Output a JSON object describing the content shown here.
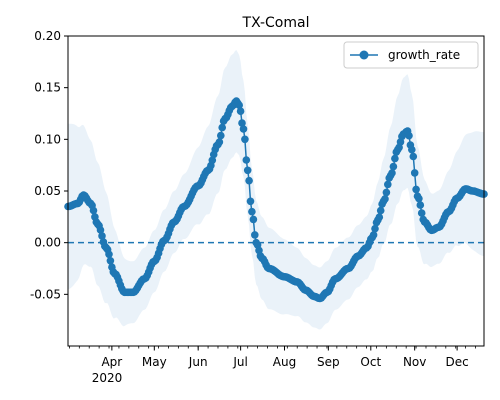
{
  "chart_data": {
    "type": "line",
    "title": "TX-Comal",
    "xlabel": "",
    "ylabel": "",
    "xlim": [
      "2020-03-01",
      "2020-12-20"
    ],
    "ylim": [
      -0.1,
      0.2
    ],
    "x_ticks": [
      {
        "date": "2020-04-01",
        "label": "Apr"
      },
      {
        "date": "2020-05-01",
        "label": "May"
      },
      {
        "date": "2020-06-01",
        "label": "Jun"
      },
      {
        "date": "2020-07-01",
        "label": "Jul"
      },
      {
        "date": "2020-08-01",
        "label": "Aug"
      },
      {
        "date": "2020-09-01",
        "label": "Sep"
      },
      {
        "date": "2020-10-01",
        "label": "Oct"
      },
      {
        "date": "2020-11-01",
        "label": "Nov"
      },
      {
        "date": "2020-12-01",
        "label": "Dec"
      }
    ],
    "year_label": "2020",
    "y_ticks": [
      "-0.05",
      "0.00",
      "0.05",
      "0.10",
      "0.15",
      "0.20"
    ],
    "y_tick_values": [
      -0.05,
      0.0,
      0.05,
      0.1,
      0.15,
      0.2
    ],
    "reference_line": {
      "y": 0.0,
      "style": "dashed",
      "color": "#1f77b4"
    },
    "legend": {
      "position": "top-right",
      "entries": [
        "growth_rate"
      ]
    },
    "colors": {
      "series": "#1f77b4",
      "band": "#dce9f5"
    },
    "series": [
      {
        "name": "growth_rate",
        "marker": "circle",
        "anchors": [
          [
            "2020-03-01",
            0.035
          ],
          [
            "2020-03-08",
            0.038
          ],
          [
            "2020-03-12",
            0.046
          ],
          [
            "2020-03-17",
            0.038
          ],
          [
            "2020-03-22",
            0.018
          ],
          [
            "2020-03-28",
            -0.005
          ],
          [
            "2020-04-03",
            -0.03
          ],
          [
            "2020-04-10",
            -0.048
          ],
          [
            "2020-04-16",
            -0.048
          ],
          [
            "2020-04-24",
            -0.035
          ],
          [
            "2020-05-01",
            -0.018
          ],
          [
            "2020-05-08",
            0.002
          ],
          [
            "2020-05-15",
            0.02
          ],
          [
            "2020-05-22",
            0.035
          ],
          [
            "2020-06-01",
            0.055
          ],
          [
            "2020-06-08",
            0.07
          ],
          [
            "2020-06-15",
            0.095
          ],
          [
            "2020-06-20",
            0.12
          ],
          [
            "2020-06-25",
            0.132
          ],
          [
            "2020-06-28",
            0.137
          ],
          [
            "2020-06-30",
            0.133
          ],
          [
            "2020-07-03",
            0.11
          ],
          [
            "2020-07-06",
            0.07
          ],
          [
            "2020-07-09",
            0.03
          ],
          [
            "2020-07-12",
            0.0
          ],
          [
            "2020-07-16",
            -0.015
          ],
          [
            "2020-07-21",
            -0.025
          ],
          [
            "2020-08-01",
            -0.033
          ],
          [
            "2020-08-10",
            -0.038
          ],
          [
            "2020-08-16",
            -0.046
          ],
          [
            "2020-08-22",
            -0.052
          ],
          [
            "2020-08-26",
            -0.054
          ],
          [
            "2020-08-31",
            -0.048
          ],
          [
            "2020-09-06",
            -0.035
          ],
          [
            "2020-09-15",
            -0.025
          ],
          [
            "2020-09-22",
            -0.013
          ],
          [
            "2020-09-28",
            -0.005
          ],
          [
            "2020-10-02",
            0.005
          ],
          [
            "2020-10-06",
            0.022
          ],
          [
            "2020-10-10",
            0.04
          ],
          [
            "2020-10-15",
            0.065
          ],
          [
            "2020-10-20",
            0.09
          ],
          [
            "2020-10-24",
            0.105
          ],
          [
            "2020-10-27",
            0.108
          ],
          [
            "2020-10-30",
            0.09
          ],
          [
            "2020-11-03",
            0.045
          ],
          [
            "2020-11-08",
            0.02
          ],
          [
            "2020-11-13",
            0.012
          ],
          [
            "2020-11-18",
            0.015
          ],
          [
            "2020-11-25",
            0.03
          ],
          [
            "2020-12-01",
            0.043
          ],
          [
            "2020-12-07",
            0.052
          ],
          [
            "2020-12-12",
            0.05
          ],
          [
            "2020-12-20",
            0.047
          ]
        ],
        "band_width": [
          [
            "2020-03-01",
            0.08
          ],
          [
            "2020-03-20",
            0.06
          ],
          [
            "2020-04-15",
            0.03
          ],
          [
            "2020-05-15",
            0.03
          ],
          [
            "2020-06-25",
            0.05
          ],
          [
            "2020-07-15",
            0.04
          ],
          [
            "2020-08-25",
            0.03
          ],
          [
            "2020-09-25",
            0.03
          ],
          [
            "2020-10-27",
            0.055
          ],
          [
            "2020-11-15",
            0.035
          ],
          [
            "2020-12-20",
            0.06
          ]
        ]
      }
    ]
  }
}
